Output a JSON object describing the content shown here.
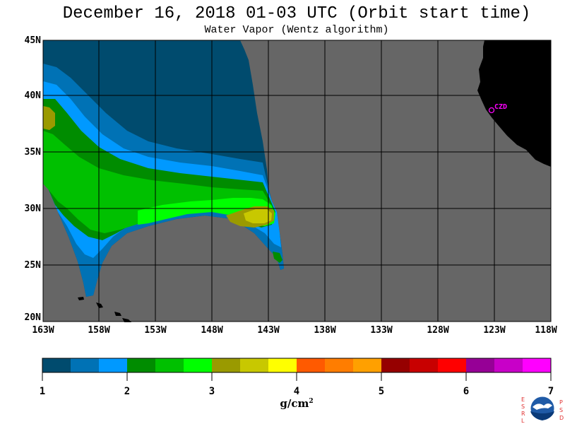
{
  "title": "December 16, 2018  01-03 UTC  (Orbit start time)",
  "subtitle": "Water Vapor (Wentz algorithm)",
  "map": {
    "lat_labels": [
      "45N",
      "40N",
      "35N",
      "30N",
      "25N",
      "20N"
    ],
    "lon_labels": [
      "163W",
      "158W",
      "153W",
      "148W",
      "143W",
      "138W",
      "133W",
      "128W",
      "123W",
      "118W"
    ],
    "city": "CZD",
    "colors": {
      "no_data": "#666666",
      "land": "#000000",
      "grid": "#000000",
      "city": "#ff00ff"
    }
  },
  "colorbar": {
    "colors": [
      "#004b6e",
      "#0072b5",
      "#0099ff",
      "#008c00",
      "#00c000",
      "#00ff00",
      "#9a9a00",
      "#c8c800",
      "#ffff00",
      "#ff5a00",
      "#ff7d00",
      "#ffa000",
      "#960000",
      "#c80000",
      "#ff0000",
      "#960096",
      "#c800c8",
      "#ff00ff"
    ],
    "tick_labels": [
      "1",
      "2",
      "3",
      "4",
      "5",
      "6",
      "7"
    ],
    "units": "g/cm",
    "units_exp": "2"
  },
  "logo": {
    "left_letters": "ESRL",
    "right_letters": "PSD",
    "center_text": "NOAA"
  }
}
